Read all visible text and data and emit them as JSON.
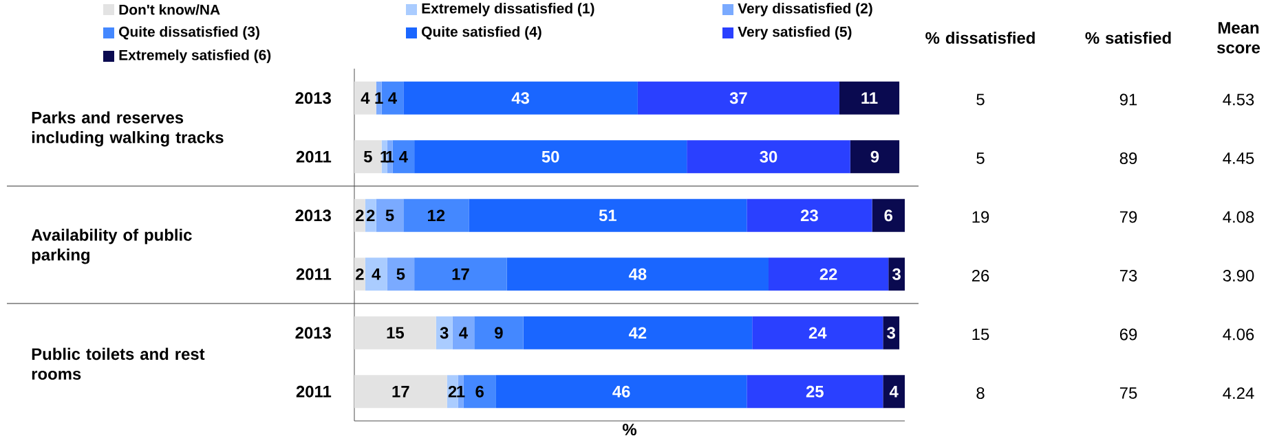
{
  "chart_data": {
    "type": "bar",
    "orientation": "horizontal",
    "stacked": true,
    "xlabel": "%",
    "categories": [
      "2013",
      "2011",
      "2013",
      "2011",
      "2013",
      "2011"
    ],
    "tick_labels": "y",
    "legend": "top left",
    "series": [
      {
        "name": "Don't know/NA",
        "color": "#e3e3e3",
        "values": [
          4,
          5,
          2,
          2,
          15,
          17
        ],
        "value_labels": [
          "4",
          "5",
          "2",
          "2",
          "15",
          "17"
        ]
      },
      {
        "name": "Extremely dissatisfied (1)",
        "color": "#aaccff",
        "values": [
          0,
          1,
          2,
          4,
          3,
          2
        ],
        "value_labels": [
          null,
          "1",
          "2",
          "4",
          "3",
          "2"
        ]
      },
      {
        "name": "Very dissatisfied (2)",
        "color": "#7aaaff",
        "values": [
          1,
          1,
          5,
          5,
          4,
          1
        ],
        "value_labels": [
          "1",
          "1",
          "5",
          "5",
          "4",
          "1"
        ]
      },
      {
        "name": "Quite dissatisfied (3)",
        "color": "#4488ff",
        "values": [
          4,
          4,
          12,
          17,
          9,
          6
        ],
        "value_labels": [
          "4",
          "4",
          "12",
          "17",
          "9",
          "6"
        ]
      },
      {
        "name": "Quite satisfied (4)",
        "color": "#1a66ff",
        "values": [
          43,
          50,
          51,
          48,
          42,
          46
        ],
        "value_labels": [
          "43",
          "50",
          "51",
          "48",
          "42",
          "46"
        ]
      },
      {
        "name": "Very satisfied (5)",
        "color": "#2a40ff",
        "values": [
          37,
          30,
          23,
          22,
          24,
          25
        ],
        "value_labels": [
          "37",
          "30",
          "23",
          "22",
          "24",
          "25"
        ]
      },
      {
        "name": "Extremely satisfied (6)",
        "color": "#0a0a50",
        "values": [
          11,
          9,
          6,
          3,
          3,
          4
        ],
        "value_labels": [
          "11",
          "9",
          "6",
          "3",
          "3",
          "4"
        ]
      }
    ],
    "annotations": [
      "Parks and reserves including walking tracks",
      "Availability of public parking",
      "Public toilets and rest rooms",
      "% dissatisfied",
      "% satisfied",
      "Mean score",
      "5",
      "91",
      "4.53",
      "5",
      "89",
      "4.45",
      "19",
      "79",
      "4.08",
      "26",
      "73",
      "3.90",
      "15",
      "69",
      "4.06",
      "8",
      "75",
      "4.24"
    ]
  }
}
